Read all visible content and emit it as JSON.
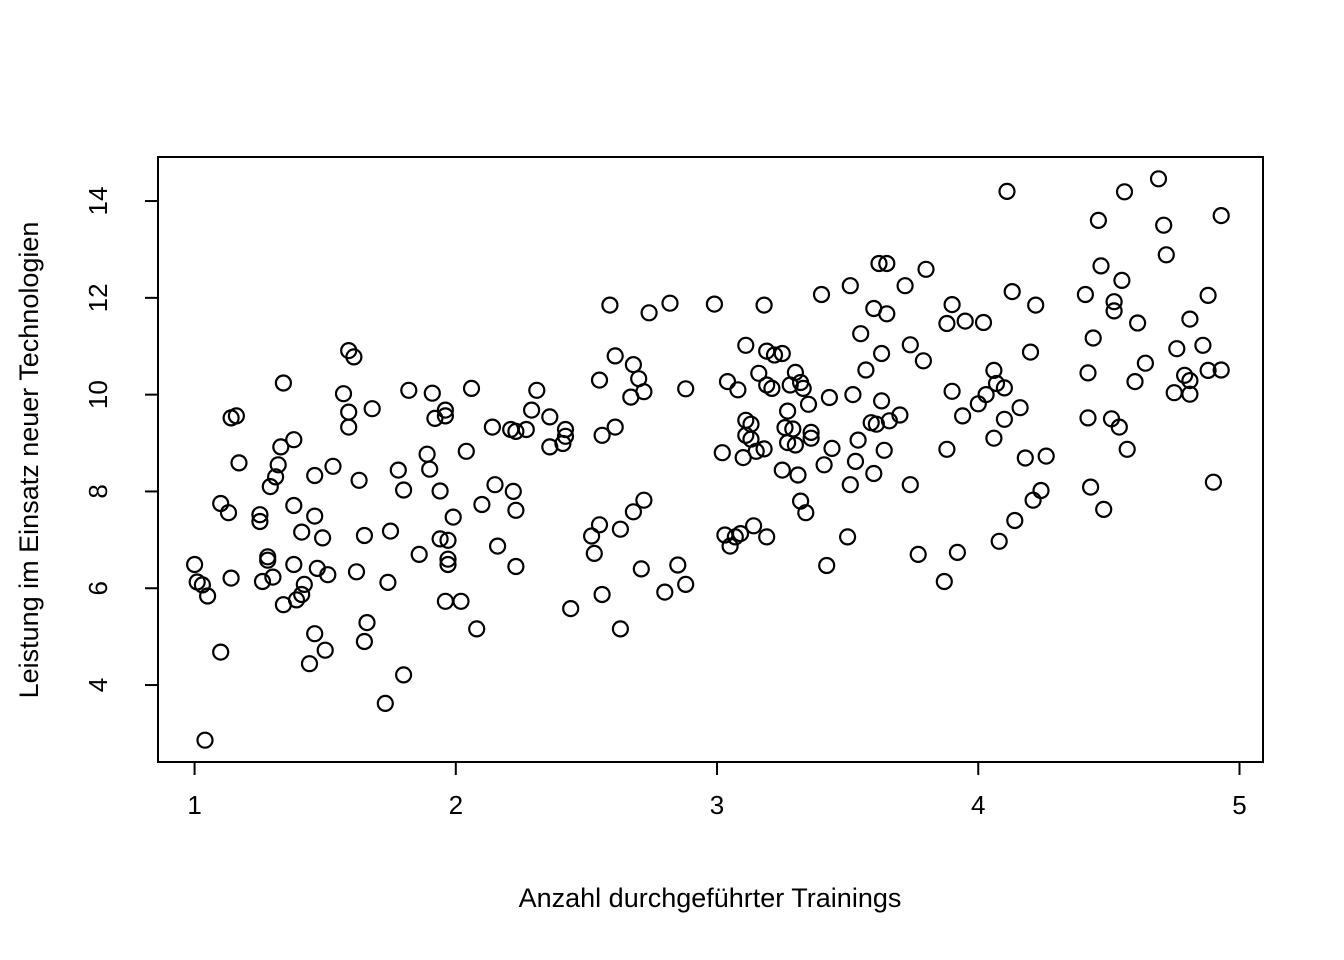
{
  "figure": {
    "background": "#ffffff",
    "point_color": "#000000",
    "axis_color": "#000000"
  },
  "chart_data": {
    "type": "scatter",
    "title": "",
    "xlabel": "Anzahl durchgeführter Trainings",
    "ylabel": "Leistung im Einsatz neuer Technologien",
    "x_ticks": [
      1,
      2,
      3,
      4,
      5
    ],
    "y_ticks": [
      4,
      6,
      8,
      10,
      12,
      14
    ],
    "xlim": [
      0.86,
      5.09
    ],
    "ylim": [
      2.41,
      14.91
    ],
    "grid": false,
    "legend": "none",
    "marker": "open-circle",
    "points": [
      [
        1.59,
        10.91
      ],
      [
        1.61,
        10.78
      ],
      [
        2.59,
        11.85
      ],
      [
        2.74,
        11.69
      ],
      [
        2.82,
        11.89
      ],
      [
        2.99,
        11.87
      ],
      [
        2.61,
        10.8
      ],
      [
        3.18,
        11.85
      ],
      [
        3.4,
        12.07
      ],
      [
        3.51,
        12.25
      ],
      [
        3.62,
        12.71
      ],
      [
        3.65,
        12.71
      ],
      [
        3.8,
        12.59
      ],
      [
        3.72,
        12.25
      ],
      [
        3.6,
        11.78
      ],
      [
        3.65,
        11.67
      ],
      [
        3.55,
        11.26
      ],
      [
        3.74,
        11.03
      ],
      [
        3.9,
        11.86
      ],
      [
        3.88,
        11.47
      ],
      [
        3.95,
        11.52
      ],
      [
        4.02,
        11.49
      ],
      [
        3.11,
        11.02
      ],
      [
        3.19,
        10.9
      ],
      [
        3.22,
        10.82
      ],
      [
        3.25,
        10.85
      ],
      [
        3.63,
        10.85
      ],
      [
        3.79,
        10.7
      ],
      [
        3.57,
        10.51
      ],
      [
        4.11,
        14.2
      ],
      [
        4.69,
        14.46
      ],
      [
        4.56,
        14.19
      ],
      [
        4.93,
        13.7
      ],
      [
        4.46,
        13.6
      ],
      [
        4.71,
        13.5
      ],
      [
        4.72,
        12.89
      ],
      [
        4.47,
        12.66
      ],
      [
        4.55,
        12.36
      ],
      [
        4.13,
        12.13
      ],
      [
        4.22,
        11.85
      ],
      [
        4.41,
        12.07
      ],
      [
        4.52,
        11.92
      ],
      [
        4.52,
        11.73
      ],
      [
        4.61,
        11.48
      ],
      [
        4.88,
        12.05
      ],
      [
        4.81,
        11.56
      ],
      [
        4.44,
        11.17
      ],
      [
        4.76,
        10.95
      ],
      [
        4.86,
        11.02
      ],
      [
        4.2,
        10.88
      ],
      [
        1.34,
        10.24
      ],
      [
        1.57,
        10.02
      ],
      [
        1.14,
        9.52
      ],
      [
        1.16,
        9.56
      ],
      [
        1.68,
        9.71
      ],
      [
        1.59,
        9.64
      ],
      [
        1.59,
        9.33
      ],
      [
        1.82,
        10.09
      ],
      [
        1.91,
        10.03
      ],
      [
        1.38,
        9.07
      ],
      [
        1.33,
        8.92
      ],
      [
        1.17,
        8.59
      ],
      [
        1.32,
        8.55
      ],
      [
        1.31,
        8.3
      ],
      [
        1.29,
        8.1
      ],
      [
        1.46,
        8.33
      ],
      [
        1.53,
        8.52
      ],
      [
        1.63,
        8.23
      ],
      [
        1.89,
        8.77
      ],
      [
        1.9,
        8.46
      ],
      [
        1.78,
        8.44
      ],
      [
        1.8,
        8.03
      ],
      [
        1.94,
        8.01
      ],
      [
        1.1,
        7.75
      ],
      [
        1.13,
        7.56
      ],
      [
        1.25,
        7.52
      ],
      [
        1.25,
        7.38
      ],
      [
        1.38,
        7.71
      ],
      [
        1.46,
        7.49
      ],
      [
        1.41,
        7.16
      ],
      [
        1.49,
        7.04
      ],
      [
        1.65,
        7.09
      ],
      [
        1.75,
        7.18
      ],
      [
        1.28,
        6.65
      ],
      [
        1.28,
        6.58
      ],
      [
        1.86,
        6.7
      ],
      [
        1.92,
        9.51
      ],
      [
        2.68,
        10.62
      ],
      [
        2.7,
        10.33
      ],
      [
        2.67,
        9.95
      ],
      [
        2.72,
        10.06
      ],
      [
        2.55,
        10.3
      ],
      [
        2.88,
        10.12
      ],
      [
        2.06,
        10.13
      ],
      [
        1.96,
        9.68
      ],
      [
        1.96,
        9.56
      ],
      [
        2.31,
        10.09
      ],
      [
        2.29,
        9.68
      ],
      [
        2.36,
        9.54
      ],
      [
        2.14,
        9.33
      ],
      [
        2.21,
        9.28
      ],
      [
        2.23,
        9.24
      ],
      [
        2.27,
        9.28
      ],
      [
        2.42,
        9.28
      ],
      [
        2.42,
        9.14
      ],
      [
        2.41,
        8.99
      ],
      [
        2.36,
        8.92
      ],
      [
        2.56,
        9.16
      ],
      [
        2.61,
        9.33
      ],
      [
        2.04,
        8.83
      ],
      [
        2.15,
        8.14
      ],
      [
        2.22,
        8.0
      ],
      [
        2.23,
        7.61
      ],
      [
        2.1,
        7.73
      ],
      [
        1.99,
        7.47
      ],
      [
        1.94,
        7.02
      ],
      [
        1.97,
        6.99
      ],
      [
        2.16,
        6.87
      ],
      [
        2.72,
        7.82
      ],
      [
        2.68,
        7.58
      ],
      [
        2.55,
        7.31
      ],
      [
        2.52,
        7.08
      ],
      [
        2.63,
        7.22
      ],
      [
        2.53,
        6.72
      ],
      [
        1.97,
        6.6
      ],
      [
        1.97,
        6.49
      ],
      [
        2.23,
        6.45
      ],
      [
        2.71,
        6.4
      ],
      [
        2.85,
        6.48
      ],
      [
        3.04,
        10.27
      ],
      [
        3.08,
        10.1
      ],
      [
        3.16,
        10.44
      ],
      [
        3.19,
        10.2
      ],
      [
        3.21,
        10.13
      ],
      [
        3.3,
        10.46
      ],
      [
        3.28,
        10.2
      ],
      [
        3.32,
        10.25
      ],
      [
        3.33,
        10.13
      ],
      [
        3.43,
        9.94
      ],
      [
        3.35,
        9.8
      ],
      [
        3.27,
        9.66
      ],
      [
        3.11,
        9.47
      ],
      [
        3.13,
        9.39
      ],
      [
        3.11,
        9.16
      ],
      [
        3.13,
        9.08
      ],
      [
        3.26,
        9.32
      ],
      [
        3.29,
        9.29
      ],
      [
        3.27,
        9.01
      ],
      [
        3.3,
        8.96
      ],
      [
        3.36,
        9.22
      ],
      [
        3.36,
        9.1
      ],
      [
        3.15,
        8.83
      ],
      [
        3.18,
        8.88
      ],
      [
        3.02,
        8.8
      ],
      [
        3.1,
        8.7
      ],
      [
        3.44,
        8.89
      ],
      [
        3.54,
        9.06
      ],
      [
        3.63,
        9.87
      ],
      [
        3.52,
        10.0
      ],
      [
        3.59,
        9.42
      ],
      [
        3.61,
        9.39
      ],
      [
        3.66,
        9.46
      ],
      [
        3.7,
        9.58
      ],
      [
        3.64,
        8.85
      ],
      [
        3.53,
        8.62
      ],
      [
        3.41,
        8.55
      ],
      [
        3.51,
        8.14
      ],
      [
        3.6,
        8.37
      ],
      [
        3.74,
        8.14
      ],
      [
        3.25,
        8.44
      ],
      [
        3.31,
        8.34
      ],
      [
        3.32,
        7.8
      ],
      [
        3.34,
        7.56
      ],
      [
        3.03,
        7.1
      ],
      [
        3.07,
        7.06
      ],
      [
        3.09,
        7.13
      ],
      [
        3.05,
        6.87
      ],
      [
        3.14,
        7.29
      ],
      [
        3.19,
        7.06
      ],
      [
        3.5,
        7.06
      ],
      [
        3.77,
        6.7
      ],
      [
        3.92,
        6.74
      ],
      [
        3.42,
        6.47
      ],
      [
        3.9,
        10.07
      ],
      [
        3.94,
        9.56
      ],
      [
        4.0,
        9.81
      ],
      [
        4.03,
        10.0
      ],
      [
        3.88,
        8.87
      ],
      [
        4.06,
        10.5
      ],
      [
        4.07,
        10.23
      ],
      [
        4.1,
        10.14
      ],
      [
        4.16,
        9.73
      ],
      [
        4.1,
        9.49
      ],
      [
        4.06,
        9.1
      ],
      [
        4.42,
        10.45
      ],
      [
        4.6,
        10.27
      ],
      [
        4.64,
        10.65
      ],
      [
        4.79,
        10.4
      ],
      [
        4.81,
        10.29
      ],
      [
        4.75,
        10.04
      ],
      [
        4.81,
        10.01
      ],
      [
        4.88,
        10.5
      ],
      [
        4.93,
        10.51
      ],
      [
        4.42,
        9.52
      ],
      [
        4.51,
        9.5
      ],
      [
        4.54,
        9.33
      ],
      [
        4.57,
        8.87
      ],
      [
        4.18,
        8.69
      ],
      [
        4.26,
        8.73
      ],
      [
        4.9,
        8.19
      ],
      [
        4.43,
        8.09
      ],
      [
        4.24,
        8.02
      ],
      [
        4.21,
        7.82
      ],
      [
        4.48,
        7.63
      ],
      [
        4.14,
        7.4
      ],
      [
        4.08,
        6.97
      ],
      [
        1.0,
        6.49
      ],
      [
        1.01,
        6.13
      ],
      [
        1.03,
        6.07
      ],
      [
        1.05,
        5.84
      ],
      [
        1.14,
        6.21
      ],
      [
        1.26,
        6.14
      ],
      [
        1.3,
        6.23
      ],
      [
        1.38,
        6.49
      ],
      [
        1.47,
        6.41
      ],
      [
        1.51,
        6.28
      ],
      [
        1.62,
        6.34
      ],
      [
        1.42,
        6.08
      ],
      [
        1.41,
        5.87
      ],
      [
        1.39,
        5.76
      ],
      [
        1.34,
        5.66
      ],
      [
        1.74,
        6.12
      ],
      [
        1.46,
        5.06
      ],
      [
        1.5,
        4.72
      ],
      [
        1.44,
        4.44
      ],
      [
        1.1,
        4.68
      ],
      [
        1.66,
        5.29
      ],
      [
        1.65,
        4.9
      ],
      [
        1.8,
        4.21
      ],
      [
        1.73,
        3.62
      ],
      [
        1.04,
        2.86
      ],
      [
        1.96,
        5.73
      ],
      [
        2.02,
        5.73
      ],
      [
        2.08,
        5.16
      ],
      [
        2.44,
        5.58
      ],
      [
        2.56,
        5.87
      ],
      [
        2.63,
        5.16
      ],
      [
        2.8,
        5.92
      ],
      [
        2.88,
        6.08
      ],
      [
        3.87,
        6.14
      ]
    ]
  }
}
